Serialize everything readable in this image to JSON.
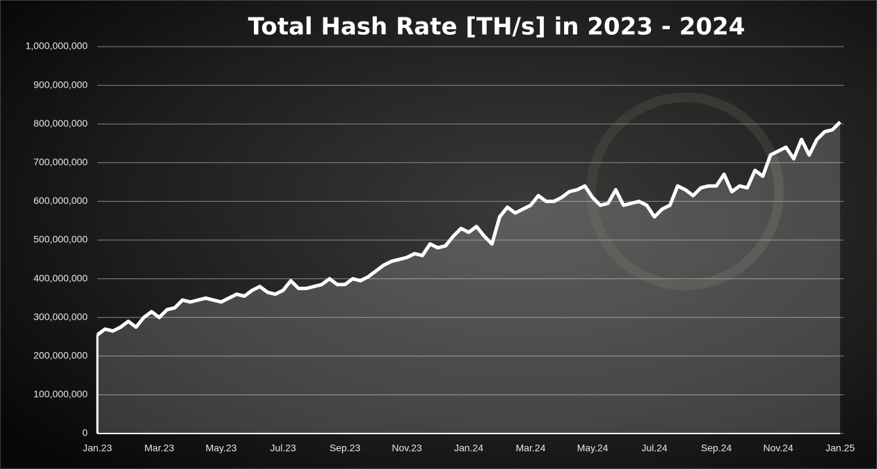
{
  "chart_data": {
    "type": "area",
    "title": "Total Hash Rate [TH/s] in 2023 - 2024",
    "categories": [
      "Jan.23",
      null,
      null,
      null,
      null,
      null,
      null,
      null,
      "Mar.23",
      null,
      null,
      null,
      null,
      null,
      null,
      null,
      "May.23",
      null,
      null,
      null,
      null,
      null,
      null,
      null,
      "Jul.23",
      null,
      null,
      null,
      null,
      null,
      null,
      null,
      "Sep.23",
      null,
      null,
      null,
      null,
      null,
      null,
      null,
      "Nov.23",
      null,
      null,
      null,
      null,
      null,
      null,
      null,
      "Jan.24",
      null,
      null,
      null,
      null,
      null,
      null,
      null,
      "Mar.24",
      null,
      null,
      null,
      null,
      null,
      null,
      null,
      "May.24",
      null,
      null,
      null,
      null,
      null,
      null,
      null,
      "Jul.24",
      null,
      null,
      null,
      null,
      null,
      null,
      null,
      "Sep.24",
      null,
      null,
      null,
      null,
      null,
      null,
      null,
      "Nov.24",
      null,
      null,
      null,
      null,
      null,
      null,
      null,
      "Jan.25"
    ],
    "values": [
      255000000,
      270000000,
      265000000,
      275000000,
      290000000,
      275000000,
      300000000,
      315000000,
      300000000,
      320000000,
      325000000,
      345000000,
      340000000,
      345000000,
      350000000,
      345000000,
      340000000,
      350000000,
      360000000,
      355000000,
      370000000,
      380000000,
      365000000,
      360000000,
      370000000,
      395000000,
      375000000,
      375000000,
      380000000,
      385000000,
      400000000,
      385000000,
      385000000,
      400000000,
      395000000,
      405000000,
      420000000,
      435000000,
      445000000,
      450000000,
      455000000,
      465000000,
      460000000,
      490000000,
      480000000,
      485000000,
      510000000,
      530000000,
      520000000,
      535000000,
      510000000,
      490000000,
      560000000,
      585000000,
      570000000,
      580000000,
      590000000,
      615000000,
      600000000,
      600000000,
      610000000,
      625000000,
      630000000,
      640000000,
      610000000,
      590000000,
      595000000,
      630000000,
      590000000,
      595000000,
      600000000,
      590000000,
      560000000,
      580000000,
      590000000,
      640000000,
      630000000,
      615000000,
      635000000,
      640000000,
      640000000,
      670000000,
      625000000,
      640000000,
      635000000,
      680000000,
      665000000,
      720000000,
      730000000,
      740000000,
      710000000,
      760000000,
      720000000,
      760000000,
      780000000,
      785000000,
      805000000
    ],
    "color": "#ffffff",
    "ylim": [
      0,
      1000000000
    ],
    "yticks": [
      0,
      {
        "value": 100000000,
        "label": "100,000,000"
      },
      {
        "value": 200000000,
        "label": "200,000,000"
      },
      {
        "value": 300000000,
        "label": "300,000,000"
      },
      {
        "value": 400000000,
        "label": "400,000,000"
      },
      {
        "value": 500000000,
        "label": "500,000,000"
      },
      {
        "value": 600000000,
        "label": "600,000,000"
      },
      {
        "value": 700000000,
        "label": "700,000,000"
      },
      {
        "value": 800000000,
        "label": "800,000,000"
      },
      {
        "value": 900000000,
        "label": "900,000,000"
      },
      {
        "value": 1000000000,
        "label": "1,000,000,000"
      }
    ],
    "grid": true
  }
}
